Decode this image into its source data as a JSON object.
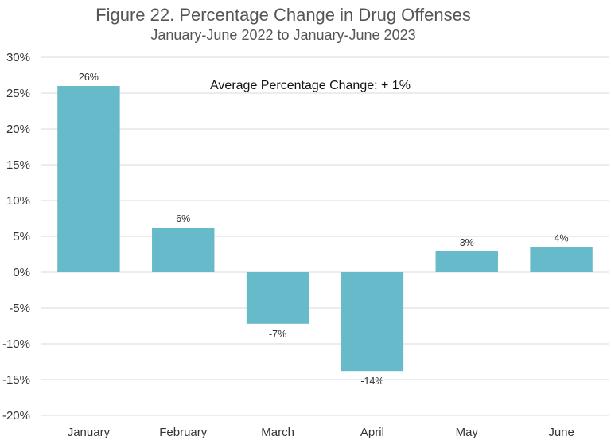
{
  "chart_data": {
    "type": "bar",
    "title": "Figure 22. Percentage Change in Drug Offenses",
    "subtitle": "January-June 2022 to January-June 2023",
    "annotation": "Average Percentage Change:  + 1%",
    "categories": [
      "January",
      "February",
      "March",
      "April",
      "May",
      "June"
    ],
    "values": [
      26,
      6.2,
      -7.2,
      -13.8,
      2.9,
      3.5
    ],
    "data_labels": [
      "26%",
      "6%",
      "-7%",
      "-14%",
      "3%",
      "4%"
    ],
    "ylim": [
      -20,
      30
    ],
    "yticks": [
      30,
      25,
      20,
      15,
      10,
      5,
      0,
      -5,
      -10,
      -15,
      -20
    ],
    "ytick_labels": [
      "30%",
      "25%",
      "20%",
      "15%",
      "10%",
      "5%",
      "0%",
      "-5%",
      "-10%",
      "-15%",
      "-20%"
    ],
    "grid": true,
    "colors": {
      "bar": "#67bac9",
      "grid": "#d9d9d9",
      "title": "#555555"
    }
  }
}
